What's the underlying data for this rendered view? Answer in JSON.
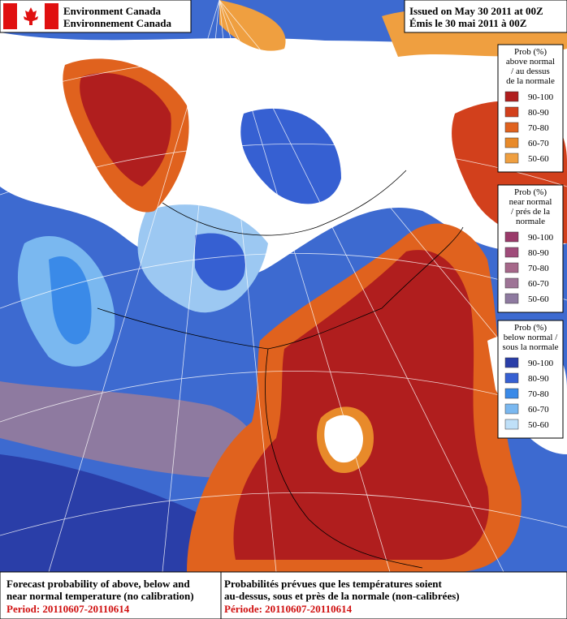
{
  "header": {
    "agency_en": "Environment Canada",
    "agency_fr": "Environnement Canada",
    "issued_en": "Issued on May 30 2011 at 00Z",
    "issued_fr": "Émis le 30 mai 2011 à 00Z"
  },
  "legends": [
    {
      "title_lines": [
        "Prob (%)",
        "above normal",
        "/ au dessus",
        "de la normale"
      ],
      "items": [
        {
          "label": "90-100",
          "color": "#b01e1e"
        },
        {
          "label": "80-90",
          "color": "#d2401c"
        },
        {
          "label": "70-80",
          "color": "#e0621e"
        },
        {
          "label": "60-70",
          "color": "#e88a2a"
        },
        {
          "label": "50-60",
          "color": "#ef9f40"
        }
      ]
    },
    {
      "title_lines": [
        "Prob (%)",
        "near normal",
        "/ prés de la",
        "normale"
      ],
      "items": [
        {
          "label": "90-100",
          "color": "#9a3a6a"
        },
        {
          "label": "80-90",
          "color": "#a04c7a"
        },
        {
          "label": "70-80",
          "color": "#a6688a"
        },
        {
          "label": "60-70",
          "color": "#9e7496"
        },
        {
          "label": "50-60",
          "color": "#8e7aa0"
        }
      ]
    },
    {
      "title_lines": [
        "Prob (%)",
        "below normal /",
        "sous la normale"
      ],
      "items": [
        {
          "label": "90-100",
          "color": "#2a3ea8"
        },
        {
          "label": "80-90",
          "color": "#3660d2"
        },
        {
          "label": "70-80",
          "color": "#3a8ae8"
        },
        {
          "label": "60-70",
          "color": "#7ab8f0"
        },
        {
          "label": "50-60",
          "color": "#bfe0f8"
        }
      ]
    }
  ],
  "footer": {
    "en_lines": [
      "Forecast probability of above, below and",
      "near normal temperature (no calibration)"
    ],
    "en_period": "Period: 20110607-20110614",
    "fr_lines": [
      "Probabilités prévues que les températures soient",
      "au-dessus, sous et près de la normale (non-calibrées)"
    ],
    "fr_period": "Période: 20110607-20110614"
  }
}
